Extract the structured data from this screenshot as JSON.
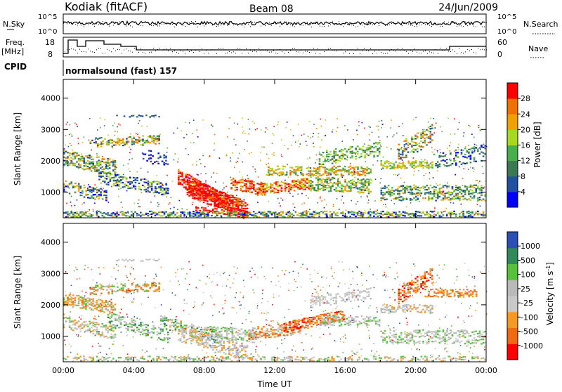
{
  "header": {
    "station": "Kodiak (fitACF)",
    "beam": "Beam 08",
    "date": "24/Jun/2009"
  },
  "noise_panel": {
    "left_label": "N.Sky",
    "right_label": "N.Search",
    "left_ticks": [
      "10^5",
      "10^0"
    ],
    "right_ticks": [
      "10^5",
      "10^0"
    ]
  },
  "freq_panel": {
    "left_label_line1": "Freq.",
    "left_label_line2": "[MHz]",
    "right_label": "Nave",
    "left_ticks": [
      "18",
      "8"
    ],
    "right_ticks": [
      "60",
      "0"
    ]
  },
  "cpid": {
    "label": "CPID",
    "text": "normalsound (fast) 157"
  },
  "colors": {
    "power_scale": [
      "#0000ff",
      "#2050a0",
      "#3a7a50",
      "#48b048",
      "#a8d820",
      "#f0a000",
      "#f07000",
      "#ff0000"
    ],
    "velocity_scale": [
      "#2a4fb8",
      "#2e8a5a",
      "#56c23a",
      "#b9b9b9",
      "#c8c8c8",
      "#f59a20",
      "#f06a10",
      "#ff0000"
    ]
  },
  "chart_data": [
    {
      "type": "heatmap",
      "name": "power",
      "xlabel": "Time UT",
      "ylabel": "Slant Range [km]",
      "x_ticks": [
        "00:00",
        "04:00",
        "08:00",
        "12:00",
        "16:00",
        "20:00",
        "00:00"
      ],
      "y_ticks": [
        "1000",
        "2000",
        "3000",
        "4000"
      ],
      "ylim": [
        180,
        4600
      ],
      "colorbar": {
        "label": "Power [dB]",
        "ticks": [
          "28",
          "24",
          "20",
          "16",
          "12",
          "8",
          "4"
        ]
      }
    },
    {
      "type": "heatmap",
      "name": "velocity",
      "xlabel": "Time UT",
      "ylabel": "Slant Range [km]",
      "x_ticks": [
        "00:00",
        "04:00",
        "08:00",
        "12:00",
        "16:00",
        "20:00",
        "00:00"
      ],
      "y_ticks": [
        "1000",
        "2000",
        "3000",
        "4000"
      ],
      "ylim": [
        180,
        4600
      ],
      "colorbar": {
        "label": "Velocity [m s^-1]",
        "ticks": [
          "1000",
          "500",
          "100",
          "25",
          "-25",
          "-100",
          "-500",
          "-1000"
        ]
      }
    }
  ]
}
